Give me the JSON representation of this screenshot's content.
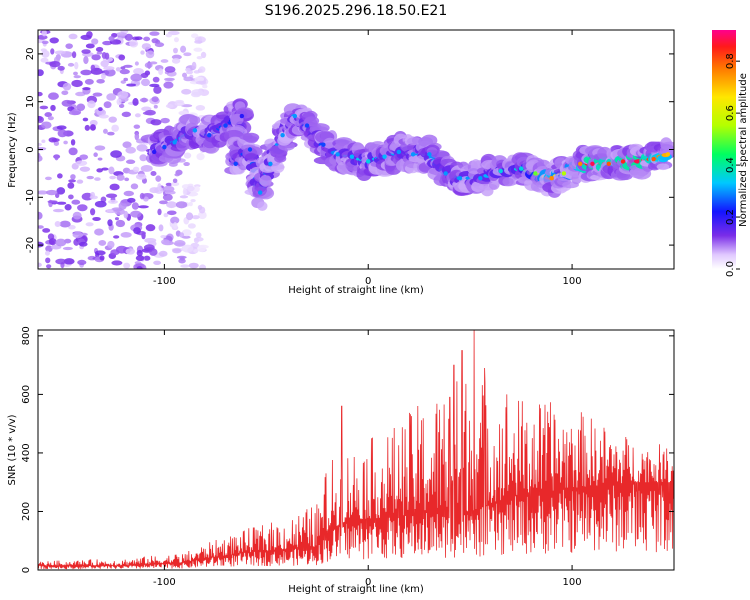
{
  "title": "S196.2025.296.18.50.E21",
  "chart_data": [
    {
      "type": "heatmap",
      "name": "spectrogram",
      "xlabel": "Height of straight line (km)",
      "ylabel": "Frequency (Hz)",
      "xlim": [
        -162,
        150
      ],
      "ylim": [
        -25,
        25
      ],
      "xticks": [
        -100,
        0,
        100
      ],
      "yticks": [
        -20,
        -10,
        0,
        10,
        20
      ],
      "xtick_labels": [
        "-100",
        "0",
        "100"
      ],
      "ytick_labels": [
        "-20",
        "-10",
        "0",
        "10",
        "20"
      ],
      "ridge": [
        {
          "x": -105,
          "y": -0.5,
          "amp": 0.2
        },
        {
          "x": -100,
          "y": 0.5,
          "amp": 0.25
        },
        {
          "x": -95,
          "y": 1.5,
          "amp": 0.3
        },
        {
          "x": -85,
          "y": 4,
          "amp": 0.3
        },
        {
          "x": -78,
          "y": 3,
          "amp": 0.25
        },
        {
          "x": -70,
          "y": 5,
          "amp": 0.25
        },
        {
          "x": -62,
          "y": 7,
          "amp": 0.2
        },
        {
          "x": -65,
          "y": -3,
          "amp": 0.25
        },
        {
          "x": -58,
          "y": 0,
          "amp": 0.25
        },
        {
          "x": -53,
          "y": -9,
          "amp": 0.3
        },
        {
          "x": -48,
          "y": -3,
          "amp": 0.3
        },
        {
          "x": -42,
          "y": 3,
          "amp": 0.3
        },
        {
          "x": -36,
          "y": 7,
          "amp": 0.3
        },
        {
          "x": -30,
          "y": 5,
          "amp": 0.25
        },
        {
          "x": -22,
          "y": 1,
          "amp": 0.25
        },
        {
          "x": -15,
          "y": -1,
          "amp": 0.3
        },
        {
          "x": -8,
          "y": -1.5,
          "amp": 0.32
        },
        {
          "x": 0,
          "y": -2.5,
          "amp": 0.35
        },
        {
          "x": 8,
          "y": -1.5,
          "amp": 0.32
        },
        {
          "x": 15,
          "y": -0.5,
          "amp": 0.3
        },
        {
          "x": 22,
          "y": -1,
          "amp": 0.3
        },
        {
          "x": 30,
          "y": -1,
          "amp": 0.3
        },
        {
          "x": 38,
          "y": -5,
          "amp": 0.3
        },
        {
          "x": 45,
          "y": -6,
          "amp": 0.3
        },
        {
          "x": 55,
          "y": -6,
          "amp": 0.3
        },
        {
          "x": 65,
          "y": -4.5,
          "amp": 0.35
        },
        {
          "x": 75,
          "y": -4,
          "amp": 0.35
        },
        {
          "x": 82,
          "y": -5,
          "amp": 0.5
        },
        {
          "x": 90,
          "y": -6,
          "amp": 0.75
        },
        {
          "x": 96,
          "y": -5,
          "amp": 0.55
        },
        {
          "x": 104,
          "y": -3,
          "amp": 0.75
        },
        {
          "x": 110,
          "y": -3,
          "amp": 0.9
        },
        {
          "x": 118,
          "y": -3,
          "amp": 0.8
        },
        {
          "x": 125,
          "y": -2.5,
          "amp": 0.85
        },
        {
          "x": 132,
          "y": -2.5,
          "amp": 0.9
        },
        {
          "x": 140,
          "y": -2,
          "amp": 0.8
        },
        {
          "x": 147,
          "y": -1,
          "amp": 0.7
        }
      ],
      "noise_region_x": [
        -162,
        -80
      ]
    },
    {
      "type": "colorbar",
      "label": "Normalized spectral amplitude",
      "range": [
        0.0,
        0.92
      ],
      "ticks": [
        0.0,
        0.2,
        0.4,
        0.6,
        0.8
      ],
      "tick_labels": [
        "0.0",
        "0.2",
        "0.4",
        "0.6",
        "0.8"
      ]
    },
    {
      "type": "line",
      "name": "snr",
      "xlabel": "Height of straight line (km)",
      "ylabel": "SNR (10 * v/v)",
      "xlim": [
        -162,
        150
      ],
      "ylim": [
        0,
        820
      ],
      "xticks": [
        -100,
        0,
        100
      ],
      "yticks": [
        0,
        200,
        400,
        600,
        800
      ],
      "xtick_labels": [
        "-100",
        "0",
        "100"
      ],
      "ytick_labels": [
        "0",
        "200",
        "400",
        "600",
        "800"
      ],
      "line_color": "#e8282a",
      "envelope": [
        {
          "x": -162,
          "base": 15,
          "peak": 30
        },
        {
          "x": -120,
          "base": 15,
          "peak": 40
        },
        {
          "x": -90,
          "base": 25,
          "peak": 60
        },
        {
          "x": -80,
          "base": 40,
          "peak": 90
        },
        {
          "x": -60,
          "base": 60,
          "peak": 140
        },
        {
          "x": -40,
          "base": 70,
          "peak": 180
        },
        {
          "x": -25,
          "base": 80,
          "peak": 230
        },
        {
          "x": -20,
          "base": 130,
          "peak": 370
        },
        {
          "x": -10,
          "base": 170,
          "peak": 420
        },
        {
          "x": 10,
          "base": 180,
          "peak": 480
        },
        {
          "x": 30,
          "base": 200,
          "peak": 600
        },
        {
          "x": 50,
          "base": 200,
          "peak": 700
        },
        {
          "x": 70,
          "base": 250,
          "peak": 600
        },
        {
          "x": 100,
          "base": 280,
          "peak": 560
        },
        {
          "x": 130,
          "base": 300,
          "peak": 450
        },
        {
          "x": 150,
          "base": 300,
          "peak": 420
        }
      ],
      "spikes": [
        {
          "x": -13,
          "y": 560
        },
        {
          "x": 42,
          "y": 700
        },
        {
          "x": 46,
          "y": 750
        },
        {
          "x": 52,
          "y": 820
        },
        {
          "x": 57,
          "y": 690
        },
        {
          "x": 40,
          "y": 590
        },
        {
          "x": 68,
          "y": 600
        }
      ]
    }
  ]
}
